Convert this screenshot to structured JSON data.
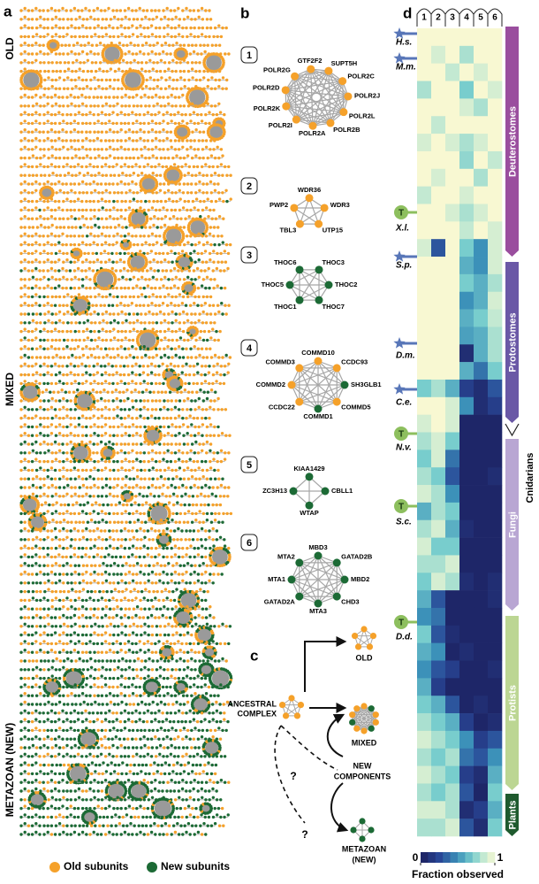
{
  "panel_labels": {
    "a": "a",
    "b": "b",
    "c": "c",
    "d": "d"
  },
  "panel_a": {
    "section_labels": [
      "OLD",
      "MIXED",
      "METAZOAN (NEW)"
    ],
    "legend": [
      {
        "label": "Old subunits",
        "color": "#f5a12a"
      },
      {
        "label": "New subunits",
        "color": "#1c6a35"
      }
    ]
  },
  "panel_b": {
    "complexes": [
      {
        "number": 1,
        "nodes": [
          {
            "label": "GTF2F2",
            "kind": "old"
          },
          {
            "label": "SUPT5H",
            "kind": "old"
          },
          {
            "label": "POLR2C",
            "kind": "old"
          },
          {
            "label": "POLR2J",
            "kind": "old"
          },
          {
            "label": "POLR2L",
            "kind": "old"
          },
          {
            "label": "POLR2B",
            "kind": "old"
          },
          {
            "label": "POLR2A",
            "kind": "old"
          },
          {
            "label": "POLR2I",
            "kind": "old"
          },
          {
            "label": "POLR2K",
            "kind": "old"
          },
          {
            "label": "POLR2D",
            "kind": "old"
          },
          {
            "label": "POLR2G",
            "kind": "old"
          }
        ]
      },
      {
        "number": 2,
        "nodes": [
          {
            "label": "WDR36",
            "kind": "old"
          },
          {
            "label": "WDR3",
            "kind": "old"
          },
          {
            "label": "UTP15",
            "kind": "old"
          },
          {
            "label": "TBL3",
            "kind": "old"
          },
          {
            "label": "PWP2",
            "kind": "old"
          }
        ]
      },
      {
        "number": 3,
        "nodes": [
          {
            "label": "THOC3",
            "kind": "new"
          },
          {
            "label": "THOC2",
            "kind": "new"
          },
          {
            "label": "THOC7",
            "kind": "new"
          },
          {
            "label": "THOC1",
            "kind": "new"
          },
          {
            "label": "THOC5",
            "kind": "new"
          },
          {
            "label": "THOC6",
            "kind": "new"
          }
        ]
      },
      {
        "number": 4,
        "nodes": [
          {
            "label": "COMMD10",
            "kind": "old"
          },
          {
            "label": "CCDC93",
            "kind": "old"
          },
          {
            "label": "SH3GLB1",
            "kind": "new"
          },
          {
            "label": "COMMD5",
            "kind": "old"
          },
          {
            "label": "COMMD1",
            "kind": "new"
          },
          {
            "label": "CCDC22",
            "kind": "old"
          },
          {
            "label": "COMMD2",
            "kind": "old"
          },
          {
            "label": "COMMD3",
            "kind": "old"
          }
        ]
      },
      {
        "number": 5,
        "nodes": [
          {
            "label": "KIAA1429",
            "kind": "new"
          },
          {
            "label": "CBLL1",
            "kind": "new"
          },
          {
            "label": "WTAP",
            "kind": "new"
          },
          {
            "label": "ZC3H13",
            "kind": "new"
          }
        ]
      },
      {
        "number": 6,
        "nodes": [
          {
            "label": "MBD3",
            "kind": "new"
          },
          {
            "label": "GATAD2B",
            "kind": "new"
          },
          {
            "label": "MBD2",
            "kind": "new"
          },
          {
            "label": "CHD3",
            "kind": "new"
          },
          {
            "label": "MTA3",
            "kind": "new"
          },
          {
            "label": "GATAD2A",
            "kind": "new"
          },
          {
            "label": "MTA1",
            "kind": "new"
          },
          {
            "label": "MTA2",
            "kind": "new"
          }
        ]
      }
    ]
  },
  "panel_c": {
    "ancestral": [
      "ANCESTRAL",
      "COMPLEX"
    ],
    "old": "OLD",
    "mixed": "MIXED",
    "new_components": [
      "NEW",
      "COMPONENTS"
    ],
    "metazoan": [
      "METAZOAN",
      "(NEW)"
    ],
    "question": "?"
  },
  "panel_d": {
    "columns": [
      1,
      2,
      3,
      4,
      5,
      6
    ],
    "species": [
      {
        "label": "H.s.",
        "marker": "star"
      },
      {
        "label": "M.m.",
        "marker": "star"
      },
      {
        "label": "X.l.",
        "marker": "T"
      },
      {
        "label": "S.p.",
        "marker": "star"
      },
      {
        "label": "D.m.",
        "marker": "star"
      },
      {
        "label": "C.e.",
        "marker": "star"
      },
      {
        "label": "N.v.",
        "marker": "T"
      },
      {
        "label": "S.c.",
        "marker": "T"
      },
      {
        "label": "D.d.",
        "marker": "T"
      }
    ],
    "groups": [
      {
        "label": "Deuterostomes",
        "color": "#9a4e9e"
      },
      {
        "label": "Protostomes",
        "color": "#6a58a6"
      },
      {
        "label": "Cnidarians",
        "color": "#ffffff"
      },
      {
        "label": "Fungi",
        "color": "#b9a6d3"
      },
      {
        "label": "Protists",
        "color": "#bcd693"
      },
      {
        "label": "Plants",
        "color": "#1f5a2e"
      }
    ],
    "values": [
      [
        1,
        1,
        1,
        1,
        1,
        1
      ],
      [
        1,
        0.9,
        1,
        0.8,
        1,
        1
      ],
      [
        1,
        1,
        0.85,
        1,
        0.9,
        1
      ],
      [
        0.8,
        1,
        1,
        0.7,
        1,
        0.9
      ],
      [
        1,
        1,
        1,
        0.9,
        0.8,
        1
      ],
      [
        1,
        0.85,
        1,
        1,
        1,
        1
      ],
      [
        0.9,
        1,
        0.9,
        0.8,
        0.9,
        1
      ],
      [
        1,
        1,
        1,
        0.75,
        1,
        0.85
      ],
      [
        1,
        0.9,
        1,
        1,
        0.8,
        1
      ],
      [
        0.85,
        1,
        1,
        0.9,
        1,
        1
      ],
      [
        1,
        1,
        0.9,
        0.8,
        0.9,
        1
      ],
      [
        1,
        1,
        1,
        0.85,
        1,
        0.9
      ],
      [
        0.9,
        0.3,
        1,
        0.7,
        0.5,
        0.9
      ],
      [
        1,
        1,
        1,
        0.6,
        0.5,
        0.9
      ],
      [
        1,
        1,
        1,
        0.7,
        0.6,
        0.8
      ],
      [
        1,
        1,
        1,
        0.5,
        0.6,
        0.9
      ],
      [
        1,
        1,
        1,
        0.6,
        0.7,
        0.85
      ],
      [
        1,
        1,
        1,
        0.55,
        0.6,
        0.8
      ],
      [
        1,
        1,
        1,
        0.1,
        0.6,
        0.8
      ],
      [
        1,
        1,
        1,
        0.6,
        0.4,
        0.7
      ],
      [
        0.7,
        0.8,
        0.6,
        0.2,
        0.1,
        0.3
      ],
      [
        1,
        1,
        0.9,
        0.5,
        0.1,
        0.2
      ],
      [
        0.9,
        1,
        0.9,
        0.05,
        0.05,
        0.05
      ],
      [
        0.8,
        0.9,
        0.7,
        0.05,
        0.05,
        0.05
      ],
      [
        0.7,
        0.9,
        0.4,
        0.05,
        0.05,
        0.05
      ],
      [
        0.8,
        0.7,
        0.3,
        0.05,
        0.05,
        0.1
      ],
      [
        0.9,
        0.8,
        0.5,
        0.05,
        0.05,
        0.05
      ],
      [
        0.6,
        0.8,
        0.7,
        0.05,
        0.05,
        0.05
      ],
      [
        0.8,
        0.9,
        0.6,
        0.1,
        0.05,
        0.05
      ],
      [
        0.9,
        0.7,
        0.7,
        0.05,
        0.05,
        0.05
      ],
      [
        0.8,
        0.8,
        0.9,
        0.05,
        0.05,
        0.05
      ],
      [
        0.7,
        0.9,
        0.8,
        0.1,
        0.05,
        0.1
      ],
      [
        0.6,
        0.3,
        0.05,
        0.05,
        0.05,
        0.1
      ],
      [
        0.5,
        0.4,
        0.05,
        0.05,
        0.05,
        0.05
      ],
      [
        0.7,
        0.3,
        0.1,
        0.05,
        0.05,
        0.05
      ],
      [
        0.6,
        0.5,
        0.05,
        0.1,
        0.05,
        0.05
      ],
      [
        0.5,
        0.3,
        0.2,
        0.05,
        0.05,
        0.1
      ],
      [
        0.6,
        0.2,
        0.05,
        0.05,
        0.05,
        0.05
      ],
      [
        0.7,
        0.6,
        0.3,
        0.05,
        0.1,
        0.05
      ],
      [
        0.8,
        0.7,
        0.6,
        0.2,
        0.05,
        0.1
      ],
      [
        0.9,
        0.8,
        0.7,
        0.5,
        0.2,
        0.3
      ],
      [
        0.8,
        0.7,
        0.8,
        0.4,
        0.3,
        0.5
      ],
      [
        0.9,
        0.8,
        0.7,
        0.2,
        0.1,
        0.6
      ],
      [
        0.8,
        0.7,
        0.8,
        0.3,
        0.05,
        0.7
      ],
      [
        0.9,
        0.9,
        0.8,
        0.1,
        0.2,
        0.6
      ],
      [
        0.8,
        0.8,
        0.9,
        0.3,
        0.1,
        0.7
      ]
    ],
    "colorbar": {
      "ticks": [
        0,
        1
      ],
      "label": "Fraction observed"
    }
  }
}
